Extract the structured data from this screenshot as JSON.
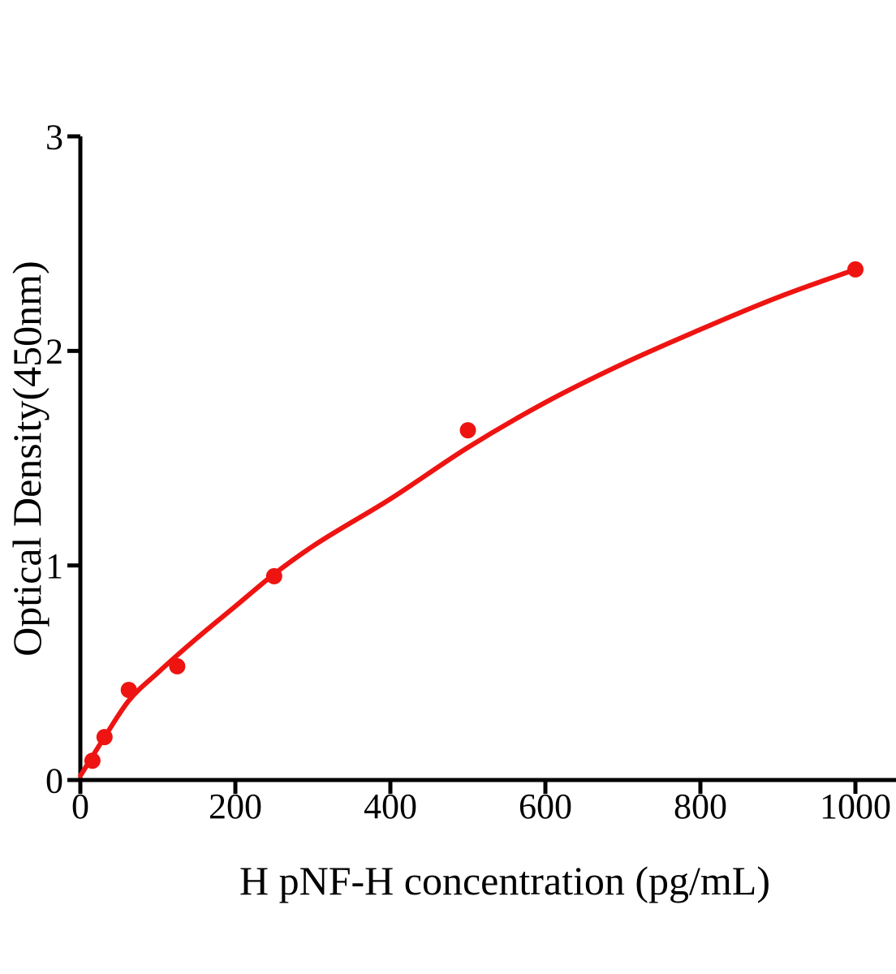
{
  "figure": {
    "background": "#ffffff",
    "description": "ELISA standard curve"
  },
  "chart_data": {
    "type": "scatter",
    "title": "",
    "xlabel": "H pNF-H concentration (pg/mL)",
    "ylabel": "Optical Density(450nm)",
    "xlim": [
      0,
      1052
    ],
    "ylim": [
      0,
      3
    ],
    "x_ticks": [
      0,
      200,
      400,
      600,
      800,
      1000
    ],
    "y_ticks": [
      0,
      1,
      2,
      3
    ],
    "grid": false,
    "legend": null,
    "axis_color": "#000000",
    "accent_color": "#ee1411",
    "series": [
      {
        "name": "standard-points",
        "type": "scatter",
        "color": "#ee1411",
        "marker_radius": 10,
        "x": [
          15.6,
          31.2,
          62.5,
          125,
          250,
          500,
          1000
        ],
        "y": [
          0.09,
          0.2,
          0.42,
          0.53,
          0.95,
          1.63,
          2.38
        ]
      },
      {
        "name": "fitted-curve",
        "type": "line",
        "color": "#ee1411",
        "stroke_width": 6,
        "x": [
          0,
          15.6,
          31.2,
          62.5,
          100,
          150,
          200,
          250,
          300,
          400,
          500,
          600,
          700,
          800,
          900,
          1000
        ],
        "y": [
          0.02,
          0.11,
          0.2,
          0.37,
          0.5,
          0.66,
          0.81,
          0.96,
          1.09,
          1.31,
          1.55,
          1.76,
          1.94,
          2.1,
          2.25,
          2.38
        ]
      }
    ]
  }
}
